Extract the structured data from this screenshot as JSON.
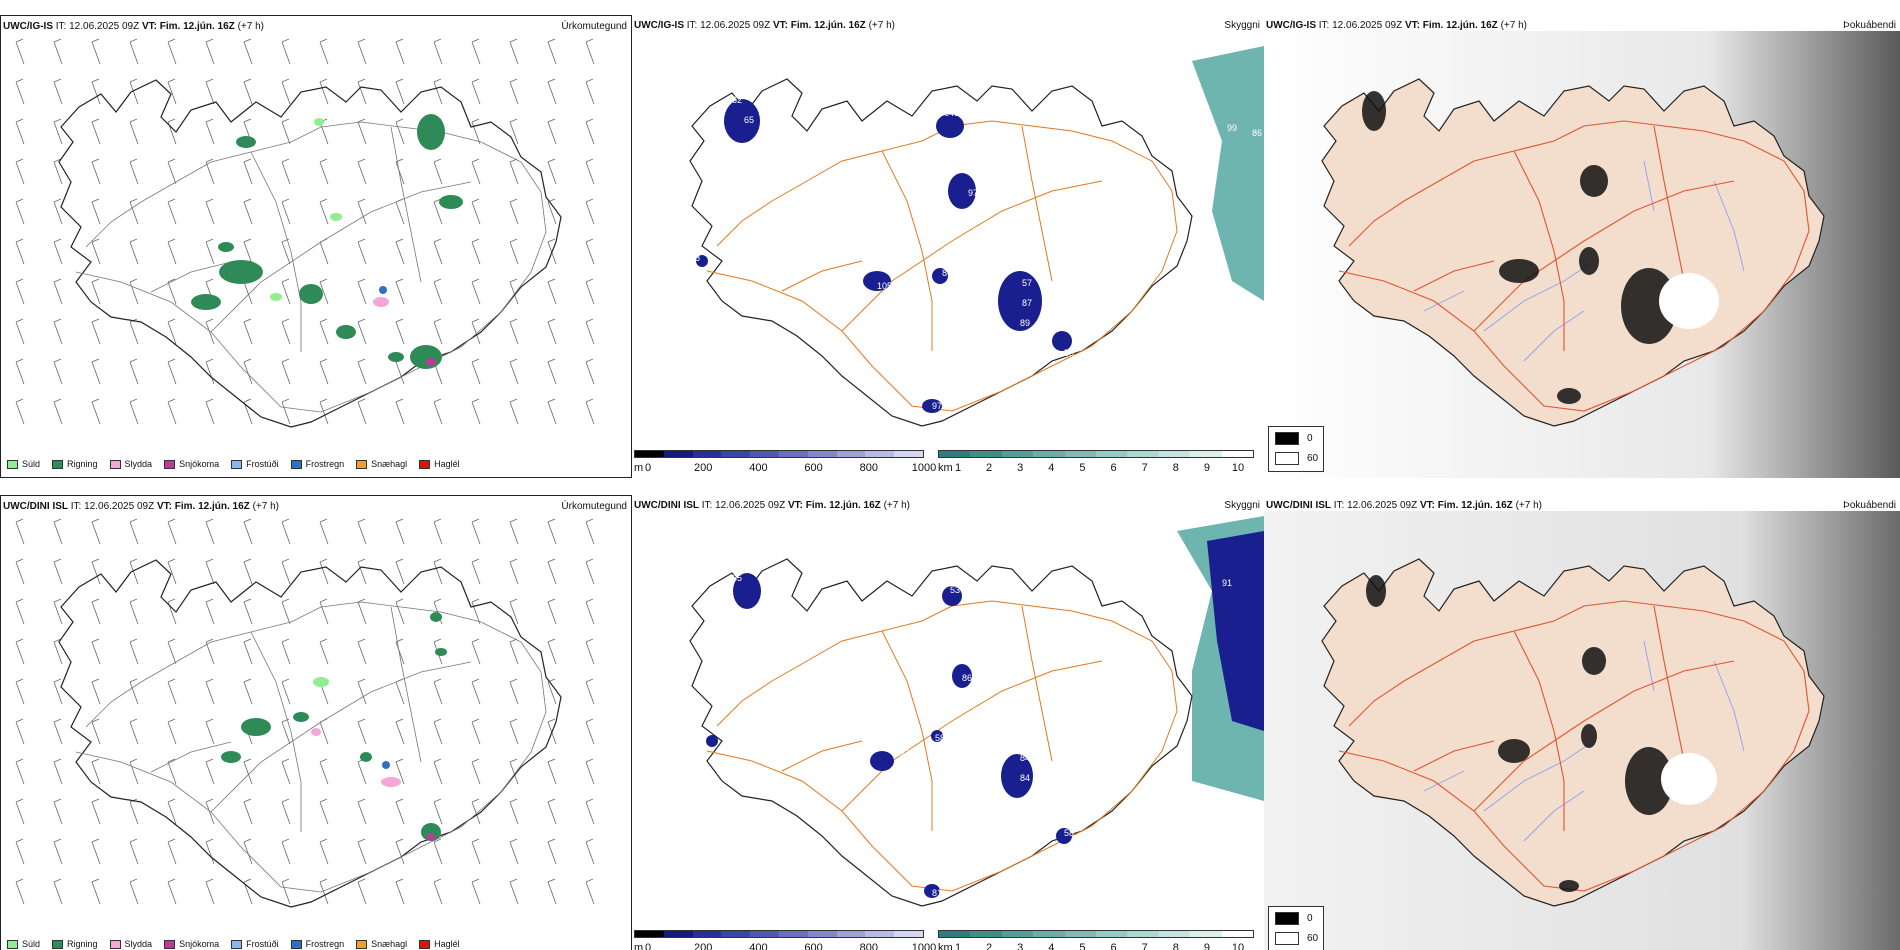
{
  "rows": [
    {
      "model": "UWC/IG-IS",
      "it_label": "IT:",
      "it_value": "12.06.2025 09Z",
      "vt_label": "VT:",
      "vt_value": "Fim. 12.jún. 16Z",
      "lead": "(+7 h)",
      "panels": {
        "precip_title": "Úrkomutegund",
        "cloud_title": "Skyggni",
        "fog_title": "Þokuábendi"
      },
      "labels": [
        "62",
        "64",
        "65",
        "48",
        "64",
        "80",
        "99",
        "86",
        "97",
        "48",
        "66",
        "86",
        "57",
        "87",
        "105",
        "89",
        "55",
        "97"
      ]
    },
    {
      "model": "UWC/DINI ISL",
      "it_label": "IT:",
      "it_value": "12.06.2025 09Z",
      "vt_label": "VT:",
      "vt_value": "Fim. 12.jún. 16Z",
      "lead": "(+7 h)",
      "panels": {
        "precip_title": "Úrkomutegund",
        "cloud_title": "Skyggni",
        "fog_title": "Þokuábendi"
      },
      "labels": [
        "65",
        "80",
        "53",
        "86",
        "91",
        "58",
        "84",
        "102",
        "111",
        "58",
        "53",
        "84",
        "58",
        "81"
      ]
    }
  ],
  "precip_legend": [
    {
      "label": "Súld",
      "color": "#90ee90"
    },
    {
      "label": "Rigning",
      "color": "#2e8b57"
    },
    {
      "label": "Slydda",
      "color": "#f4a6d7"
    },
    {
      "label": "Snjókoma",
      "color": "#c0399a"
    },
    {
      "label": "Frostúði",
      "color": "#87b8f0"
    },
    {
      "label": "Frostregn",
      "color": "#2f6fc9"
    },
    {
      "label": "Snæhagl",
      "color": "#f0a020"
    },
    {
      "label": "Haglél",
      "color": "#e01010"
    }
  ],
  "height_bar": {
    "unit": "m",
    "ticks": [
      "0",
      "200",
      "400",
      "600",
      "800",
      "1000"
    ],
    "colors": [
      "#000000",
      "#141a7a",
      "#2a2f9a",
      "#3d44a8",
      "#5058b2",
      "#6a70bf",
      "#8388cc",
      "#9ea2d8",
      "#b8bbe3",
      "#d4d6ef"
    ]
  },
  "vis_bar": {
    "unit": "km",
    "ticks": [
      "1",
      "2",
      "3",
      "4",
      "5",
      "6",
      "7",
      "8",
      "9",
      "10"
    ],
    "colors": [
      "#2e7f7a",
      "#3f8f89",
      "#52a099",
      "#68ada6",
      "#7fbcb5",
      "#96cac4",
      "#aed7d2",
      "#c6e4e0",
      "#ddefec",
      "#ffffff"
    ]
  },
  "fog_legend": [
    {
      "label": "0",
      "color": "#000000"
    },
    {
      "label": "60",
      "color": "#ffffff"
    }
  ],
  "colors": {
    "land_fill": "#f3ddcc",
    "road": "#e07a20",
    "road_fog": "#e05530",
    "river": "#8fa0f0",
    "rain": "#2e8b57",
    "cloud_low": "#1a1f8f",
    "sea_vis": "#4aa39c"
  }
}
